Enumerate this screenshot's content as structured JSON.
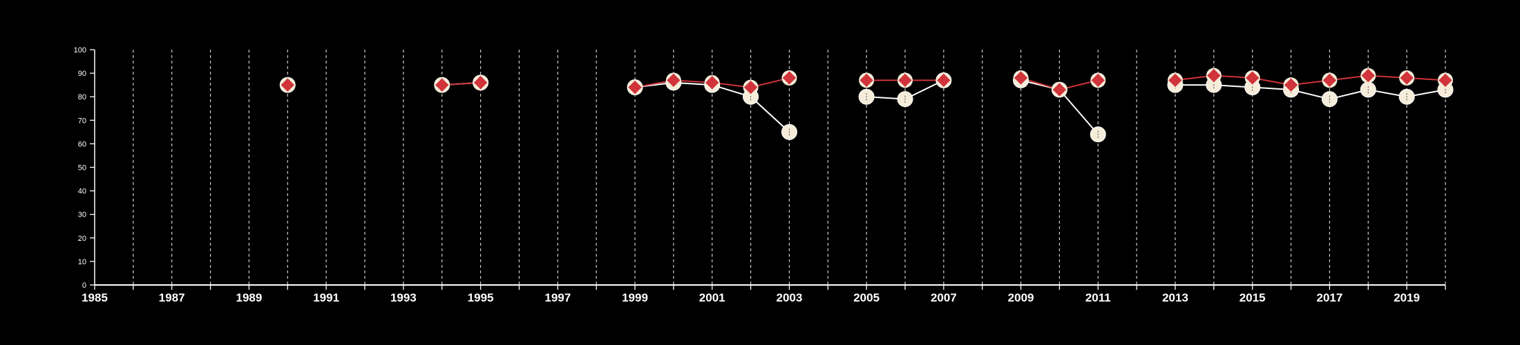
{
  "chart_data": {
    "type": "line",
    "title": "",
    "xlabel": "",
    "ylabel": "",
    "xlim": [
      1985,
      2020
    ],
    "ylim": [
      0,
      100
    ],
    "x_ticks": [
      1985,
      1987,
      1989,
      1991,
      1993,
      1995,
      1997,
      1999,
      2001,
      2003,
      2005,
      2007,
      2009,
      2011,
      2013,
      2015,
      2017,
      2019
    ],
    "y_ticks": [
      0,
      10,
      20,
      30,
      40,
      50,
      60,
      70,
      80,
      90,
      100
    ],
    "vertical_grid_every_year": true,
    "background": "#000000",
    "series": [
      {
        "marker": "circle",
        "color": "#f5ecd9",
        "line_color": "#ffffff",
        "segments": [
          [
            [
              1990,
              85
            ]
          ],
          [
            [
              1994,
              85
            ],
            [
              1995,
              86
            ]
          ],
          [
            [
              1999,
              84
            ],
            [
              2000,
              86
            ],
            [
              2001,
              85
            ],
            [
              2002,
              80
            ],
            [
              2003,
              65
            ]
          ],
          [
            [
              2005,
              80
            ],
            [
              2006,
              79
            ],
            [
              2007,
              87
            ]
          ],
          [
            [
              2009,
              87
            ],
            [
              2010,
              83
            ],
            [
              2011,
              64
            ]
          ],
          [
            [
              2013,
              85
            ],
            [
              2014,
              85
            ],
            [
              2015,
              84
            ],
            [
              2016,
              83
            ],
            [
              2017,
              79
            ],
            [
              2018,
              83
            ],
            [
              2019,
              80
            ],
            [
              2020,
              83
            ]
          ]
        ]
      },
      {
        "marker": "diamond",
        "color": "#d0333a",
        "line_color": "#d0333a",
        "segments": [
          [
            [
              1990,
              85
            ]
          ],
          [
            [
              1994,
              85
            ],
            [
              1995,
              86
            ]
          ],
          [
            [
              1999,
              84
            ],
            [
              2000,
              87
            ],
            [
              2001,
              86
            ],
            [
              2002,
              84
            ],
            [
              2003,
              88
            ]
          ],
          [
            [
              2005,
              87
            ],
            [
              2006,
              87
            ],
            [
              2007,
              87
            ]
          ],
          [
            [
              2009,
              88
            ],
            [
              2010,
              83
            ],
            [
              2011,
              87
            ]
          ],
          [
            [
              2013,
              87
            ],
            [
              2014,
              89
            ],
            [
              2015,
              88
            ],
            [
              2016,
              85
            ],
            [
              2017,
              87
            ],
            [
              2018,
              89
            ],
            [
              2019,
              88
            ],
            [
              2020,
              87
            ]
          ]
        ]
      }
    ]
  }
}
